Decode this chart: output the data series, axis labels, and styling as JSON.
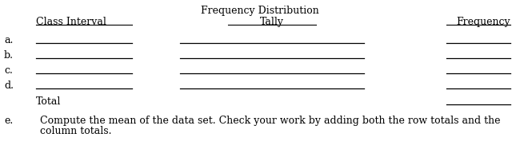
{
  "title": "Frequency Distribution",
  "col1_header": "Class Interval",
  "col2_header": "Tally",
  "col3_header": "Frequency",
  "row_labels": [
    "a.",
    "b.",
    "c.",
    "d."
  ],
  "total_label": "Total",
  "note_label": "e.",
  "note_line1": "Compute the mean of the data set. Check your work by adding both the row totals and the",
  "note_line2": "column totals.",
  "bg_color": "#ffffff",
  "text_color": "#000000",
  "line_color": "#000000",
  "font_size": 9,
  "title_font_size": 9,
  "header_font_size": 9
}
